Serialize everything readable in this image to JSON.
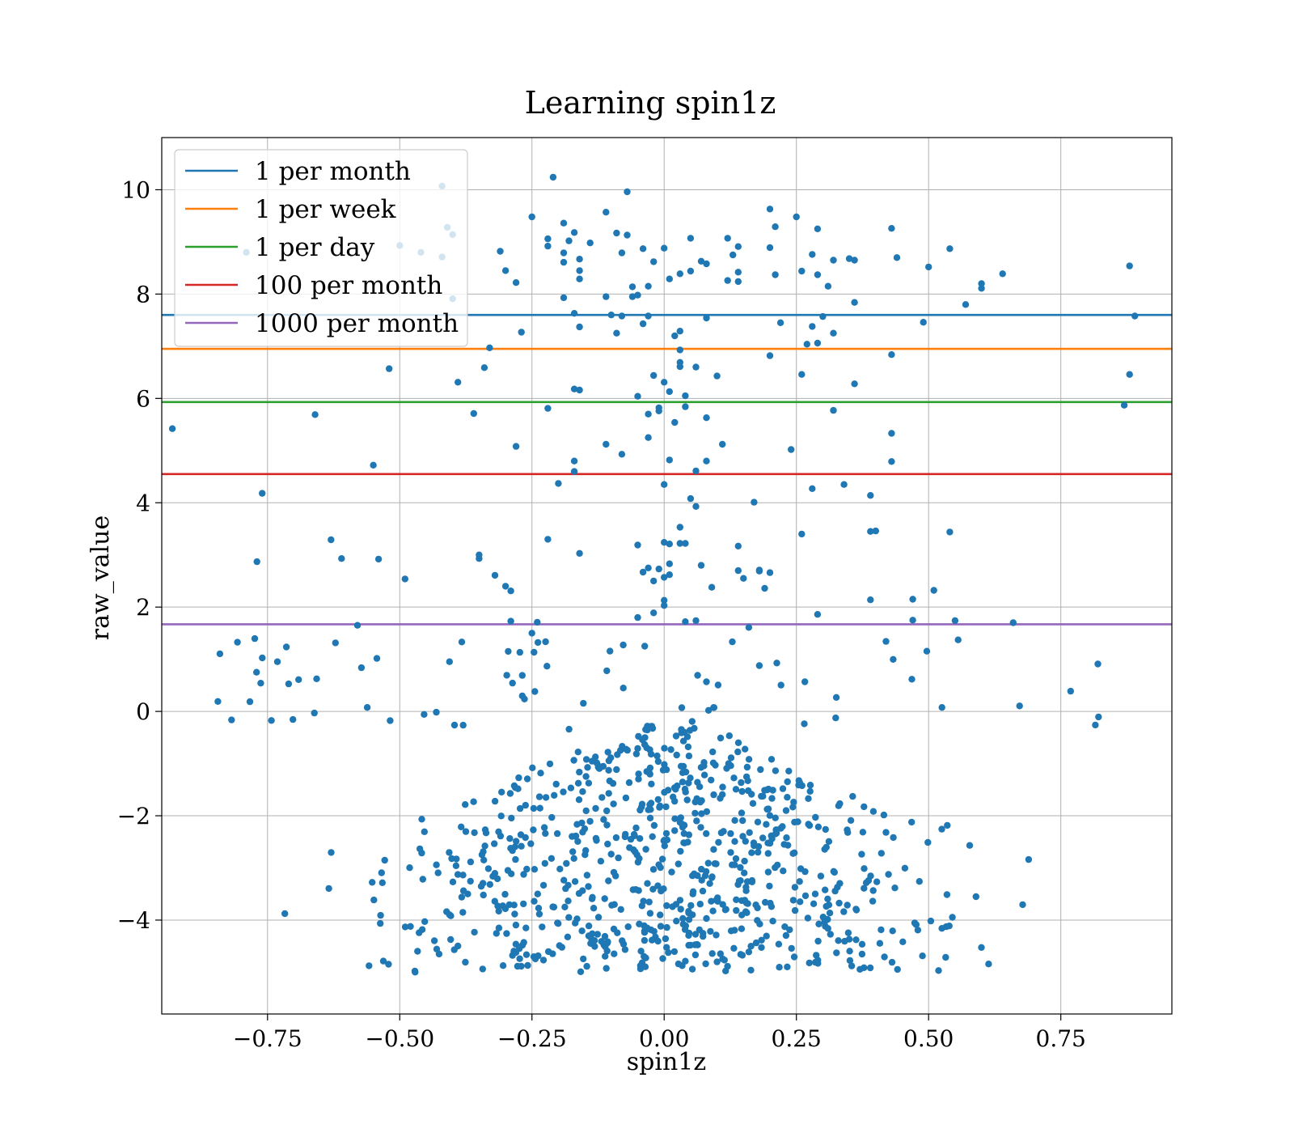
{
  "chart_data": {
    "type": "scatter",
    "title": "Learning spin1z",
    "xlabel": "spin1z",
    "ylabel": "raw_value",
    "xlim": [
      -0.95,
      0.96
    ],
    "ylim": [
      -5.8,
      11.0
    ],
    "grid": true,
    "legend_placement": "upper-left",
    "xticks": [
      -0.75,
      -0.5,
      -0.25,
      0.0,
      0.25,
      0.5,
      0.75
    ],
    "xtick_labels": [
      "−0.75",
      "−0.50",
      "−0.25",
      "0.00",
      "0.25",
      "0.50",
      "0.75"
    ],
    "yticks": [
      -4,
      -2,
      0,
      2,
      4,
      6,
      8,
      10
    ],
    "ytick_labels": [
      "−4",
      "−2",
      "0",
      "2",
      "4",
      "6",
      "8",
      "10"
    ],
    "point_color": "#1f77b4",
    "hlines": [
      {
        "name": "1 per month",
        "y": 7.6,
        "color": "#1f77b4"
      },
      {
        "name": "1 per week",
        "y": 6.95,
        "color": "#ff7f0e"
      },
      {
        "name": "1 per day",
        "y": 5.93,
        "color": "#2ca02c"
      },
      {
        "name": "100 per month",
        "y": 4.55,
        "color": "#d62728"
      },
      {
        "name": "1000 per month",
        "y": 1.67,
        "color": "#9467bd"
      }
    ],
    "points": [
      [
        -0.93,
        5.42
      ],
      [
        -0.76,
        4.18
      ],
      [
        -0.77,
        2.87
      ],
      [
        -0.58,
        1.65
      ],
      [
        -0.55,
        4.72
      ],
      [
        -0.66,
        5.69
      ],
      [
        -0.52,
        6.57
      ],
      [
        -0.49,
        2.54
      ],
      [
        -0.63,
        3.29
      ],
      [
        -0.61,
        2.93
      ],
      [
        -0.54,
        2.92
      ],
      [
        -0.42,
        10.07
      ],
      [
        -0.41,
        9.28
      ],
      [
        -0.4,
        9.14
      ],
      [
        -0.4,
        7.91
      ],
      [
        -0.39,
        6.31
      ],
      [
        -0.36,
        5.71
      ],
      [
        -0.34,
        6.59
      ],
      [
        -0.33,
        6.97
      ],
      [
        -0.35,
        3.0
      ],
      [
        -0.35,
        2.93
      ],
      [
        -0.32,
        2.61
      ],
      [
        -0.3,
        2.4
      ],
      [
        -0.29,
        2.31
      ],
      [
        -0.29,
        1.73
      ],
      [
        -0.25,
        1.5
      ],
      [
        -0.24,
        1.71
      ],
      [
        -0.28,
        5.08
      ],
      [
        -0.28,
        8.22
      ],
      [
        -0.31,
        8.82
      ],
      [
        -0.3,
        8.45
      ],
      [
        -0.27,
        7.27
      ],
      [
        -0.25,
        9.48
      ],
      [
        -0.22,
        9.06
      ],
      [
        -0.22,
        8.92
      ],
      [
        -0.21,
        10.24
      ],
      [
        -0.19,
        9.36
      ],
      [
        -0.19,
        8.79
      ],
      [
        -0.19,
        8.61
      ],
      [
        -0.18,
        9.02
      ],
      [
        -0.17,
        9.18
      ],
      [
        -0.16,
        8.67
      ],
      [
        -0.16,
        8.45
      ],
      [
        -0.16,
        8.29
      ],
      [
        -0.14,
        8.98
      ],
      [
        -0.19,
        7.93
      ],
      [
        -0.17,
        7.63
      ],
      [
        -0.16,
        7.37
      ],
      [
        -0.17,
        6.18
      ],
      [
        -0.16,
        6.16
      ],
      [
        -0.22,
        5.81
      ],
      [
        -0.11,
        9.57
      ],
      [
        -0.09,
        9.17
      ],
      [
        -0.07,
        9.13
      ],
      [
        -0.07,
        9.96
      ],
      [
        -0.08,
        8.79
      ],
      [
        -0.06,
        8.14
      ],
      [
        -0.04,
        8.87
      ],
      [
        -0.03,
        8.15
      ],
      [
        -0.02,
        8.62
      ],
      [
        0.0,
        8.88
      ],
      [
        0.01,
        8.29
      ],
      [
        0.03,
        8.39
      ],
      [
        0.05,
        9.07
      ],
      [
        0.07,
        8.63
      ],
      [
        0.08,
        8.58
      ],
      [
        0.05,
        8.44
      ],
      [
        -0.11,
        7.95
      ],
      [
        -0.1,
        7.6
      ],
      [
        -0.08,
        7.58
      ],
      [
        -0.09,
        7.25
      ],
      [
        -0.06,
        7.95
      ],
      [
        -0.04,
        7.43
      ],
      [
        -0.03,
        7.58
      ],
      [
        -0.05,
        7.98
      ],
      [
        0.02,
        7.2
      ],
      [
        0.03,
        7.29
      ],
      [
        0.08,
        7.54
      ],
      [
        -0.11,
        5.12
      ],
      [
        -0.08,
        4.93
      ],
      [
        -0.05,
        6.04
      ],
      [
        -0.03,
        5.7
      ],
      [
        -0.03,
        5.25
      ],
      [
        -0.02,
        6.44
      ],
      [
        -0.01,
        5.82
      ],
      [
        -0.01,
        5.76
      ],
      [
        0.0,
        6.31
      ],
      [
        0.01,
        6.13
      ],
      [
        0.02,
        5.54
      ],
      [
        0.03,
        6.93
      ],
      [
        0.03,
        6.69
      ],
      [
        0.03,
        6.61
      ],
      [
        0.04,
        6.05
      ],
      [
        0.04,
        5.84
      ],
      [
        0.06,
        6.6
      ],
      [
        0.08,
        5.63
      ],
      [
        0.1,
        6.43
      ],
      [
        0.11,
        5.12
      ],
      [
        0.08,
        4.8
      ],
      [
        0.06,
        4.61
      ],
      [
        0.01,
        4.82
      ],
      [
        0.0,
        4.35
      ],
      [
        0.05,
        4.08
      ],
      [
        0.06,
        3.93
      ],
      [
        -0.17,
        4.6
      ],
      [
        -0.17,
        4.8
      ],
      [
        -0.2,
        4.37
      ],
      [
        -0.22,
        3.3
      ],
      [
        -0.16,
        3.03
      ],
      [
        0.12,
        9.07
      ],
      [
        0.13,
        8.75
      ],
      [
        0.14,
        8.91
      ],
      [
        0.12,
        8.26
      ],
      [
        0.14,
        8.42
      ],
      [
        0.14,
        8.24
      ],
      [
        0.2,
        9.63
      ],
      [
        0.21,
        9.29
      ],
      [
        0.2,
        8.89
      ],
      [
        0.21,
        8.37
      ],
      [
        0.25,
        9.48
      ],
      [
        0.26,
        8.44
      ],
      [
        0.28,
        8.76
      ],
      [
        0.29,
        9.25
      ],
      [
        0.29,
        8.37
      ],
      [
        0.31,
        8.15
      ],
      [
        0.32,
        8.65
      ],
      [
        0.35,
        8.68
      ],
      [
        0.36,
        8.65
      ],
      [
        0.43,
        9.26
      ],
      [
        0.44,
        8.7
      ],
      [
        0.5,
        8.52
      ],
      [
        0.54,
        8.87
      ],
      [
        0.57,
        7.8
      ],
      [
        0.6,
        8.11
      ],
      [
        0.6,
        8.2
      ],
      [
        0.64,
        8.39
      ],
      [
        0.88,
        8.54
      ],
      [
        0.89,
        7.58
      ],
      [
        0.88,
        6.46
      ],
      [
        0.87,
        5.87
      ],
      [
        0.49,
        7.46
      ],
      [
        0.36,
        7.84
      ],
      [
        0.3,
        7.57
      ],
      [
        0.32,
        7.25
      ],
      [
        0.28,
        7.38
      ],
      [
        0.27,
        7.04
      ],
      [
        0.29,
        7.06
      ],
      [
        0.22,
        7.45
      ],
      [
        0.2,
        6.82
      ],
      [
        0.26,
        6.46
      ],
      [
        0.36,
        6.28
      ],
      [
        0.43,
        6.84
      ],
      [
        0.32,
        5.77
      ],
      [
        0.43,
        5.33
      ],
      [
        0.43,
        4.79
      ],
      [
        0.24,
        5.02
      ],
      [
        0.17,
        4.01
      ],
      [
        0.28,
        4.27
      ],
      [
        0.34,
        4.35
      ],
      [
        0.39,
        4.14
      ],
      [
        0.26,
        3.4
      ],
      [
        0.39,
        3.45
      ],
      [
        0.4,
        3.46
      ],
      [
        0.54,
        3.44
      ],
      [
        0.14,
        3.17
      ],
      [
        0.14,
        2.7
      ],
      [
        0.15,
        2.55
      ],
      [
        0.18,
        2.71
      ],
      [
        0.18,
        2.69
      ],
      [
        0.2,
        2.66
      ],
      [
        0.19,
        2.36
      ],
      [
        0.09,
        2.38
      ],
      [
        0.07,
        2.8
      ],
      [
        0.03,
        3.53
      ],
      [
        0.03,
        3.22
      ],
      [
        0.04,
        3.22
      ],
      [
        0.01,
        3.21
      ],
      [
        0.01,
        2.83
      ],
      [
        0.01,
        2.62
      ],
      [
        0.0,
        2.57
      ],
      [
        -0.01,
        2.73
      ],
      [
        -0.02,
        2.5
      ],
      [
        -0.03,
        2.75
      ],
      [
        -0.04,
        2.67
      ],
      [
        -0.05,
        3.19
      ],
      [
        0.0,
        3.24
      ],
      [
        0.0,
        2.13
      ],
      [
        0.0,
        2.03
      ],
      [
        -0.02,
        1.89
      ],
      [
        -0.05,
        1.8
      ],
      [
        0.04,
        1.72
      ],
      [
        0.06,
        1.74
      ],
      [
        0.29,
        1.86
      ],
      [
        0.39,
        2.14
      ],
      [
        0.47,
        2.15
      ],
      [
        0.51,
        2.32
      ],
      [
        0.47,
        1.75
      ],
      [
        0.55,
        1.74
      ],
      [
        0.66,
        1.7
      ],
      [
        0.16,
        1.61
      ],
      [
        -0.79,
        8.8
      ],
      [
        -0.5,
        8.93
      ],
      [
        -0.46,
        8.8
      ],
      [
        -0.42,
        8.71
      ]
    ],
    "dense_cluster": {
      "n": 780,
      "x_sigma": 0.33,
      "x_center": 0.0,
      "y_min": -5.0,
      "y_max": -0.2,
      "low_band_n": 75,
      "low_band_y": [
        -0.35,
        1.4
      ]
    }
  }
}
